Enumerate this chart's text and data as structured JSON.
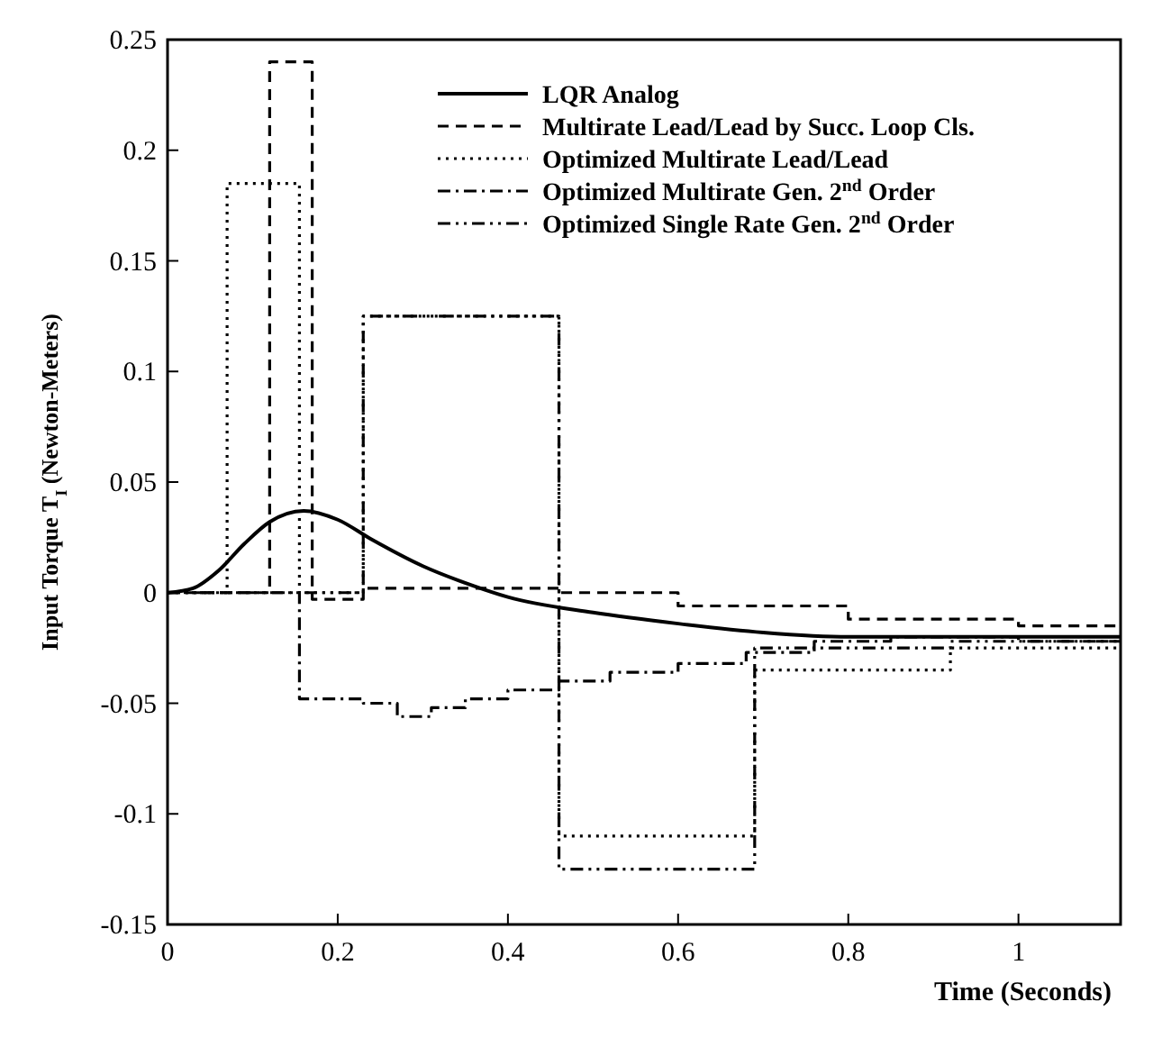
{
  "chart_data": {
    "type": "step",
    "xlabel": "Time (Seconds)",
    "ylabel": "Input Torque T$_{I}$  (Newton-Meters)",
    "xlim": [
      0,
      1.12
    ],
    "ylim": [
      -0.15,
      0.25
    ],
    "xticks": [
      0,
      0.2,
      0.4,
      0.6,
      0.8,
      1
    ],
    "yticks": [
      -0.15,
      -0.1,
      -0.05,
      0,
      0.05,
      0.1,
      0.15,
      0.2,
      0.25
    ],
    "legend": "top",
    "grid": false,
    "series": [
      {
        "name": "LQR Analog",
        "type": "line",
        "line_style": "solid",
        "color": "#000000",
        "x": [
          0,
          0.03,
          0.06,
          0.09,
          0.12,
          0.16,
          0.2,
          0.24,
          0.3,
          0.36,
          0.4,
          0.5,
          0.6,
          0.7,
          0.8,
          0.9,
          1,
          1.12
        ],
        "values": [
          0,
          0.002,
          0.01,
          0.022,
          0.032,
          0.037,
          0.033,
          0.024,
          0.012,
          0.003,
          -0.002,
          -0.009,
          -0.014,
          -0.018,
          -0.02,
          -0.02,
          -0.02,
          -0.02
        ]
      },
      {
        "name": "Multirate Lead/Lead by Succ. Loop Cls.",
        "line_style": "dashed",
        "color": "#000000",
        "x": [
          0,
          0.12,
          0.17,
          0.23,
          0.46,
          0.6,
          0.8,
          1,
          1.12
        ],
        "values": [
          0,
          0.24,
          -0.003,
          0.002,
          0,
          -0.006,
          -0.012,
          -0.015,
          -0.015
        ]
      },
      {
        "name": "Optimized Multirate Lead/Lead",
        "line_style": "dotted",
        "color": "#000000",
        "x": [
          0,
          0.07,
          0.155,
          0.23,
          0.46,
          0.69,
          0.92,
          1.12
        ],
        "values": [
          0,
          0.185,
          0,
          0.125,
          -0.11,
          -0.035,
          -0.025,
          -0.025
        ]
      },
      {
        "name": "Optimized Multirate Gen. 2$^{nd}$ Order",
        "line_style": "dashdot",
        "color": "#000000",
        "x": [
          0,
          0.155,
          0.23,
          0.27,
          0.31,
          0.35,
          0.4,
          0.46,
          0.52,
          0.6,
          0.68,
          0.76,
          0.85,
          1,
          1.12
        ],
        "values": [
          0,
          -0.048,
          -0.05,
          -0.056,
          -0.052,
          -0.048,
          -0.044,
          -0.04,
          -0.036,
          -0.032,
          -0.027,
          -0.022,
          -0.02,
          -0.022,
          -0.022
        ]
      },
      {
        "name": "Optimized Single Rate Gen. 2$^{nd}$ Order",
        "line_style": "dashdotdot",
        "color": "#000000",
        "x": [
          0,
          0.23,
          0.46,
          0.69,
          0.92,
          1.12
        ],
        "values": [
          0,
          0.125,
          -0.125,
          -0.025,
          -0.022,
          -0.022
        ]
      }
    ]
  }
}
